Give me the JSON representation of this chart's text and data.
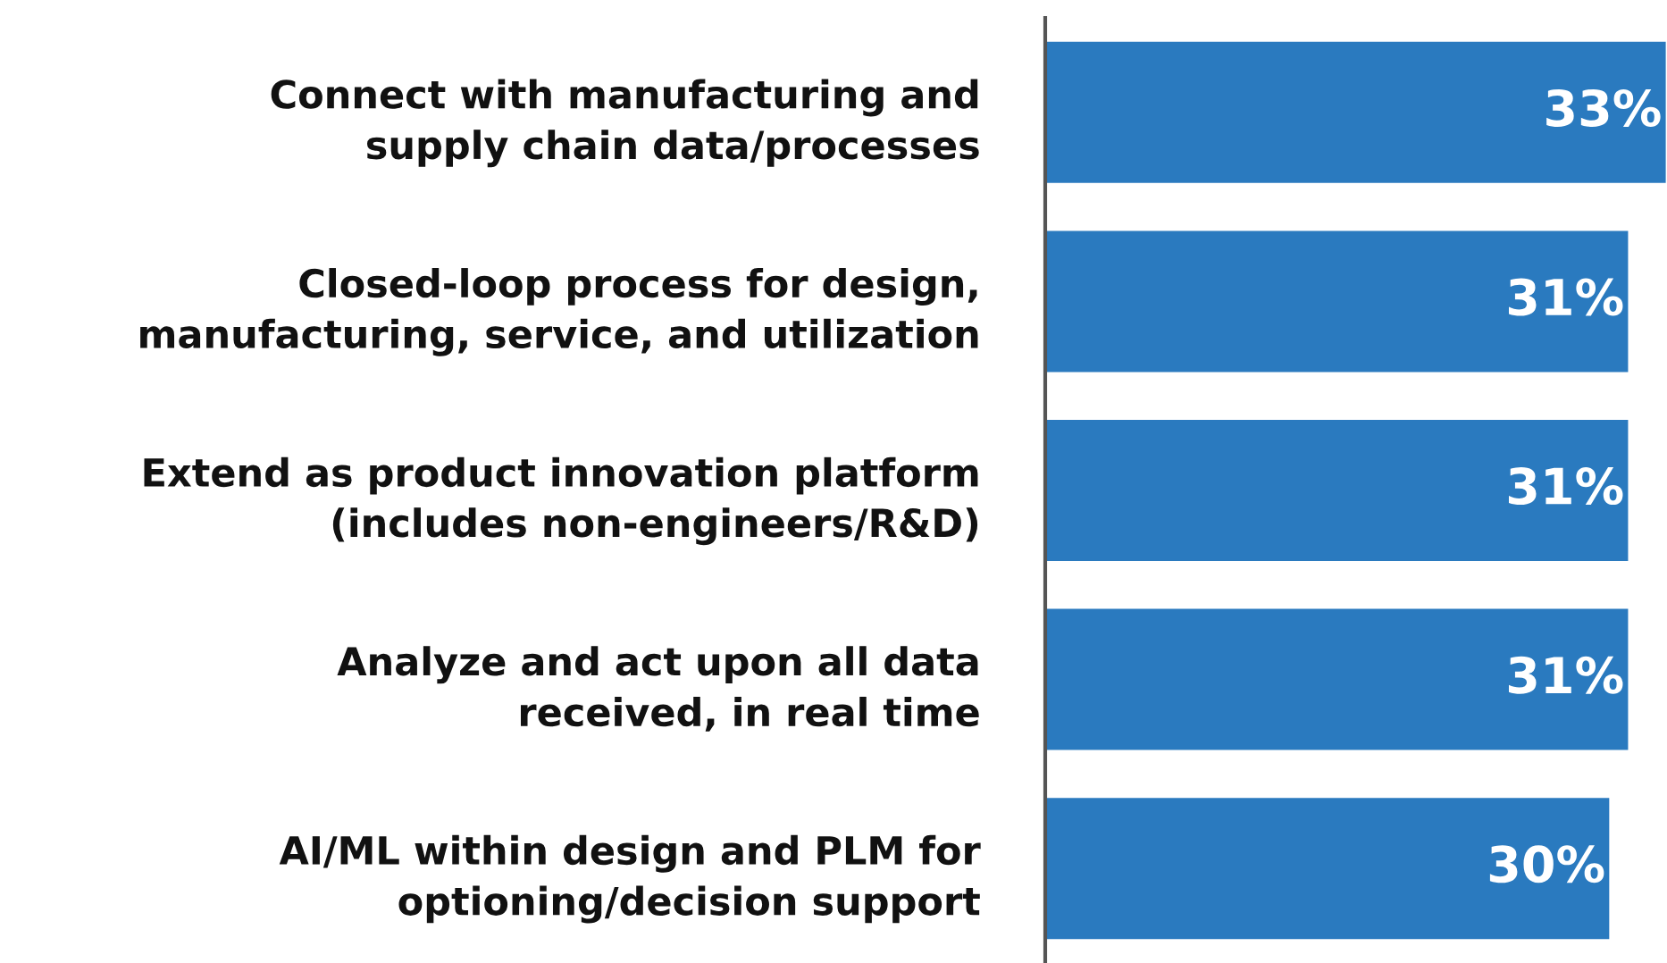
{
  "chart_data": {
    "type": "bar",
    "orientation": "horizontal",
    "categories": [
      "Connect with manufacturing and\nsupply chain data/processes",
      "Closed-loop process for design,\nmanufacturing, service, and utilization",
      "Extend as product innovation platform\n(includes non-engineers/R&D)",
      "Analyze and act upon all data\nreceived, in real time",
      "AI/ML within design and PLM for\noptioning/decision support"
    ],
    "values": [
      33,
      31,
      31,
      31,
      30
    ],
    "value_labels": [
      "33%",
      "31%",
      "31%",
      "31%",
      "30%"
    ],
    "color": "#2a7abf",
    "grid": false
  }
}
